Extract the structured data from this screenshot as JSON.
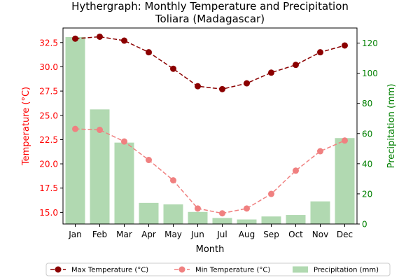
{
  "chart_data": {
    "type": "bar",
    "title": "Hythergraph: Monthly Temperature and Precipitation",
    "subtitle": "Toliara (Madagascar)",
    "xlabel": "Month",
    "ylabel_left": "Temperature (°C)",
    "ylabel_right": "Precipitation (mm)",
    "categories": [
      "Jan",
      "Feb",
      "Mar",
      "Apr",
      "May",
      "Jun",
      "Jul",
      "Aug",
      "Sep",
      "Oct",
      "Nov",
      "Dec"
    ],
    "ylim_left": [
      13.8,
      34.0
    ],
    "ylim_right": [
      0,
      130
    ],
    "yticks_left": [
      "15.0",
      "17.5",
      "20.0",
      "22.5",
      "25.0",
      "27.5",
      "30.0",
      "32.5"
    ],
    "yticks_right": [
      "0",
      "20",
      "40",
      "60",
      "80",
      "100",
      "120"
    ],
    "legend_position": "bottom-center",
    "series": [
      {
        "name": "Max Temperature (°C)",
        "kind": "line",
        "axis": "left",
        "color": "#8b0000",
        "linestyle": "dashed",
        "marker": "circle",
        "values": [
          32.9,
          33.1,
          32.7,
          31.5,
          29.8,
          28.0,
          27.7,
          28.3,
          29.4,
          30.2,
          31.5,
          32.2
        ]
      },
      {
        "name": "Min Temperature (°C)",
        "kind": "line",
        "axis": "left",
        "color": "#f08080",
        "linestyle": "dashed",
        "marker": "circle",
        "values": [
          23.6,
          23.5,
          22.3,
          20.4,
          18.3,
          15.4,
          14.9,
          15.4,
          16.9,
          19.3,
          21.3,
          22.4
        ]
      },
      {
        "name": "Precipitation (mm)",
        "kind": "bar",
        "axis": "right",
        "color": "#b1d9b1",
        "values": [
          124,
          76,
          54,
          14,
          13,
          8,
          4,
          3,
          5,
          6,
          15,
          57
        ]
      }
    ],
    "colors": {
      "left_axis": "#ff0000",
      "right_axis": "#008000"
    }
  }
}
